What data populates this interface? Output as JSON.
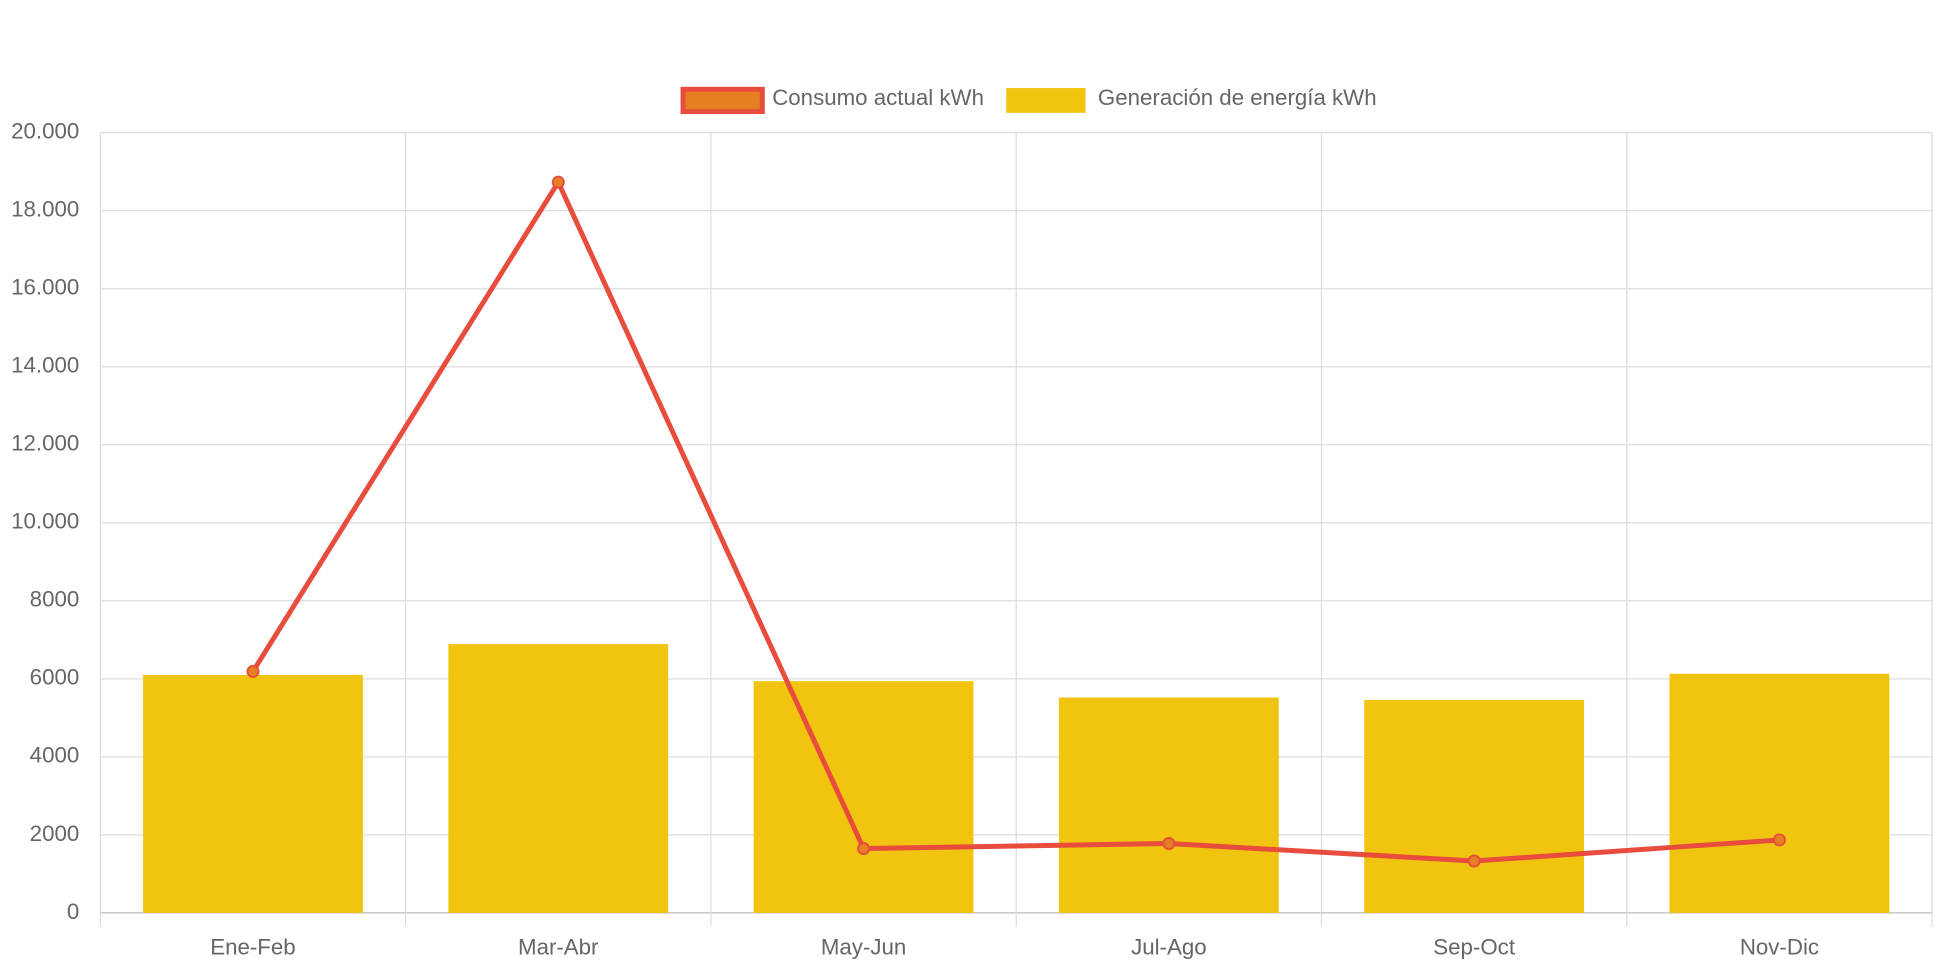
{
  "chart_data": {
    "type": "bar_line",
    "categories": [
      "Ene-Feb",
      "Mar-Abr",
      "May-Jun",
      "Jul-Ago",
      "Sep-Oct",
      "Nov-Dic"
    ],
    "series": [
      {
        "name": "Consumo actual kWh",
        "type": "line",
        "color": "#e74c3c",
        "point_color": "#e67e22",
        "values": [
          6190,
          18730,
          1650,
          1780,
          1330,
          1870
        ]
      },
      {
        "name": "Generación de energía kWh",
        "type": "bar",
        "color": "#f1c40f",
        "values": [
          6100,
          6890,
          5940,
          5520,
          5460,
          6130
        ]
      }
    ],
    "ylim": [
      0,
      20000
    ],
    "yticks": [
      0,
      2000,
      4000,
      6000,
      8000,
      {
        "value": 10000,
        "label": "10.000"
      },
      {
        "value": 12000,
        "label": "12.000"
      },
      {
        "value": 14000,
        "label": "14.000"
      },
      {
        "value": 16000,
        "label": "16.000"
      },
      {
        "value": 18000,
        "label": "18.000"
      },
      {
        "value": 20000,
        "label": "20.000"
      }
    ],
    "grid": true,
    "legend": "top"
  }
}
